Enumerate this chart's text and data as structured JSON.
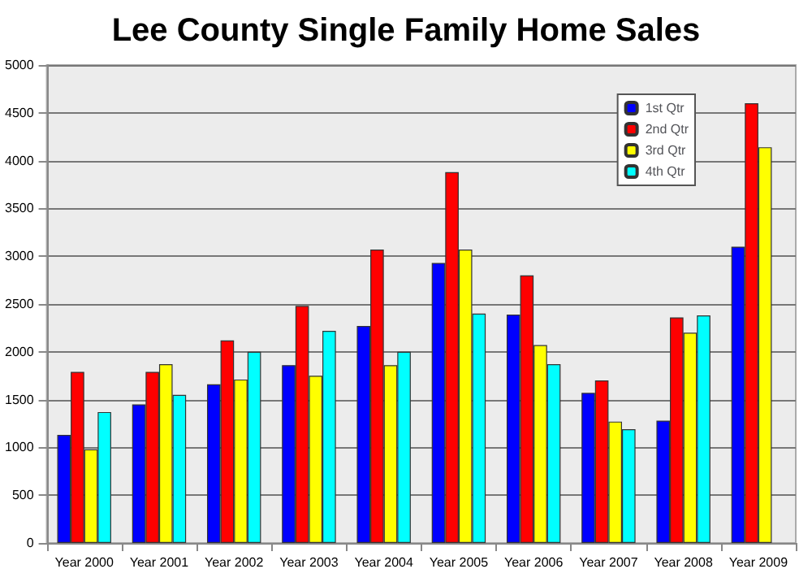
{
  "chart_data": {
    "type": "bar",
    "title": "Lee County Single Family Home Sales",
    "categories": [
      "Year 2000",
      "Year 2001",
      "Year 2002",
      "Year 2003",
      "Year 2004",
      "Year 2005",
      "Year 2006",
      "Year 2007",
      "Year 2008",
      "Year 2009"
    ],
    "series": [
      {
        "name": "1st Qtr",
        "color": "#0000ff",
        "values": [
          1130,
          1450,
          1660,
          1860,
          2270,
          2930,
          2390,
          1570,
          1280,
          3100
        ]
      },
      {
        "name": "2nd Qtr",
        "color": "#ff0000",
        "values": [
          1790,
          1790,
          2120,
          2480,
          3070,
          3880,
          2800,
          1700,
          2360,
          4600
        ]
      },
      {
        "name": "3rd Qtr",
        "color": "#ffff00",
        "values": [
          980,
          1870,
          1710,
          1750,
          1860,
          3070,
          2070,
          1270,
          2200,
          4140
        ]
      },
      {
        "name": "4th Qtr",
        "color": "#00ffff",
        "values": [
          1370,
          1550,
          2000,
          2220,
          2000,
          2400,
          1870,
          1190,
          2380,
          null
        ]
      }
    ],
    "ylim": [
      0,
      5000
    ],
    "yticks": [
      0,
      500,
      1000,
      1500,
      2000,
      2500,
      3000,
      3500,
      4000,
      4500,
      5000
    ],
    "grid": "y",
    "legend": "top right"
  }
}
